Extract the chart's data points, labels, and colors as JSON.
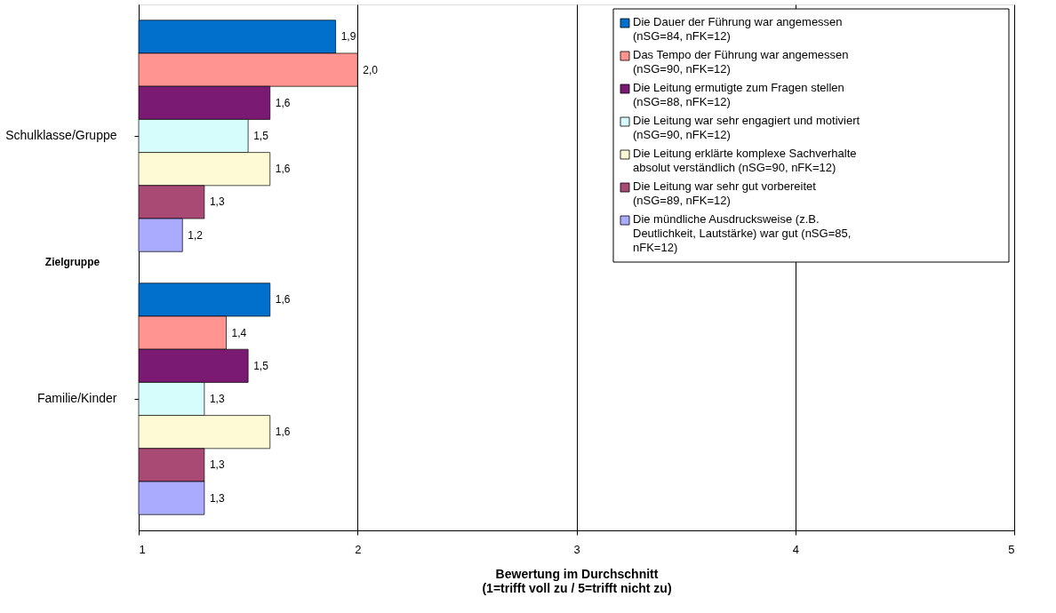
{
  "chart_data": {
    "type": "bar",
    "orientation": "horizontal",
    "xlabel": "Bewertung im Durchschnitt\n(1=trifft voll zu / 5=trifft nicht zu)",
    "ylabel": "Zielgruppe",
    "categories": [
      "Schulklasse/Gruppe",
      "Familie/Kinder"
    ],
    "series": [
      {
        "name": "Die Dauer der Führung war angemessen (nSG=84, nFK=12)",
        "color": "#0070cc",
        "values": [
          1.9,
          1.6
        ],
        "value_labels": [
          "1,9",
          "1,6"
        ]
      },
      {
        "name": "Das Tempo der Führung war angemessen (nSG=90, nFK=12)",
        "color": "#ff9490",
        "values": [
          2.0,
          1.4
        ],
        "value_labels": [
          "2,0",
          "1,4"
        ]
      },
      {
        "name": "Die Leitung ermutigte zum Fragen stellen (nSG=88, nFK=12)",
        "color": "#7a1a72",
        "values": [
          1.6,
          1.5
        ],
        "value_labels": [
          "1,6",
          "1,5"
        ]
      },
      {
        "name": "Die Leitung war sehr engagiert und motiviert (nSG=90, nFK=12)",
        "color": "#d6fcfc",
        "values": [
          1.5,
          1.3
        ],
        "value_labels": [
          "1,5",
          "1,3"
        ]
      },
      {
        "name": "Die Leitung erklärte komplexe Sachverhalte absolut verständlich (nSG=90, nFK=12)",
        "color": "#fffad6",
        "values": [
          1.6,
          1.6
        ],
        "value_labels": [
          "1,6",
          "1,6"
        ]
      },
      {
        "name": "Die Leitung war sehr gut vorbereitet (nSG=89, nFK=12)",
        "color": "#a84a74",
        "values": [
          1.3,
          1.3
        ],
        "value_labels": [
          "1,3",
          "1,3"
        ]
      },
      {
        "name": "Die mündliche Ausdrucksweise (z.B. Deutlichkeit, Lautstärke) war gut (nSG=85, nFK=12)",
        "color": "#aaaaff",
        "values": [
          1.2,
          1.3
        ],
        "value_labels": [
          "1,2",
          "1,3"
        ]
      }
    ],
    "xlim": [
      1,
      5
    ],
    "xticks": [
      1,
      2,
      3,
      4,
      5
    ],
    "grid": "x",
    "legend": "top right"
  }
}
